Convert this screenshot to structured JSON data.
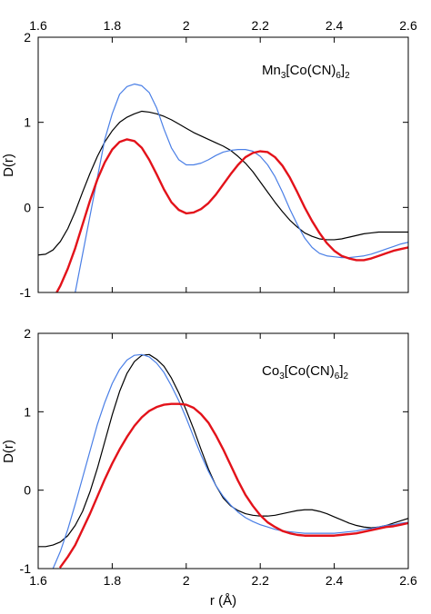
{
  "chart_data": [
    {
      "type": "line",
      "annotation": {
        "parts": [
          [
            "Mn",
            "n"
          ],
          [
            "3",
            "sub"
          ],
          [
            "[Co(CN)",
            "n"
          ],
          [
            "6",
            "sub"
          ],
          [
            "]",
            "n"
          ],
          [
            "2",
            "sub"
          ]
        ]
      },
      "xlabel": "",
      "ylabel": "D(r)",
      "xlim": [
        1.6,
        2.6
      ],
      "ylim": [
        -1,
        2
      ],
      "xticks": [
        1.6,
        1.8,
        2,
        2.2,
        2.4,
        2.6
      ],
      "xtick_labels": [
        "1.6",
        "1.8",
        "2",
        "2.2",
        "2.4",
        "2.6"
      ],
      "yticks": [
        -1,
        0,
        1,
        2
      ],
      "ytick_labels": [
        "-1",
        "0",
        "1",
        "2"
      ],
      "top_tick_labels": true,
      "bottom_tick_labels": false,
      "series": [
        {
          "color": "#000000",
          "width": 1.2,
          "x": [
            1.6,
            1.62,
            1.64,
            1.66,
            1.68,
            1.7,
            1.72,
            1.74,
            1.76,
            1.78,
            1.8,
            1.82,
            1.84,
            1.86,
            1.88,
            1.9,
            1.92,
            1.94,
            1.96,
            1.98,
            2.0,
            2.02,
            2.04,
            2.06,
            2.08,
            2.1,
            2.12,
            2.14,
            2.16,
            2.18,
            2.2,
            2.22,
            2.24,
            2.26,
            2.28,
            2.3,
            2.32,
            2.34,
            2.36,
            2.38,
            2.4,
            2.42,
            2.44,
            2.46,
            2.48,
            2.5,
            2.52,
            2.54,
            2.56,
            2.58,
            2.6
          ],
          "y": [
            -0.56,
            -0.55,
            -0.5,
            -0.4,
            -0.25,
            -0.05,
            0.18,
            0.4,
            0.6,
            0.77,
            0.9,
            1.0,
            1.06,
            1.1,
            1.13,
            1.12,
            1.1,
            1.07,
            1.03,
            0.98,
            0.93,
            0.88,
            0.84,
            0.8,
            0.76,
            0.72,
            0.67,
            0.6,
            0.52,
            0.42,
            0.3,
            0.18,
            0.06,
            -0.05,
            -0.15,
            -0.23,
            -0.3,
            -0.34,
            -0.37,
            -0.38,
            -0.38,
            -0.37,
            -0.35,
            -0.33,
            -0.31,
            -0.3,
            -0.29,
            -0.29,
            -0.29,
            -0.29,
            -0.29
          ]
        },
        {
          "color": "#4a7fe6",
          "width": 1.2,
          "x": [
            1.7,
            1.72,
            1.74,
            1.76,
            1.78,
            1.8,
            1.82,
            1.84,
            1.86,
            1.88,
            1.9,
            1.92,
            1.94,
            1.96,
            1.98,
            2.0,
            2.02,
            2.04,
            2.06,
            2.08,
            2.1,
            2.12,
            2.14,
            2.16,
            2.18,
            2.2,
            2.22,
            2.24,
            2.26,
            2.28,
            2.3,
            2.32,
            2.34,
            2.36,
            2.38,
            2.4,
            2.42,
            2.44,
            2.46,
            2.48,
            2.5,
            2.52,
            2.54,
            2.56,
            2.58,
            2.6
          ],
          "y": [
            -1.0,
            -0.55,
            -0.1,
            0.35,
            0.8,
            1.1,
            1.33,
            1.42,
            1.45,
            1.43,
            1.35,
            1.17,
            0.92,
            0.7,
            0.56,
            0.5,
            0.5,
            0.52,
            0.56,
            0.61,
            0.65,
            0.67,
            0.68,
            0.68,
            0.66,
            0.6,
            0.5,
            0.36,
            0.18,
            -0.02,
            -0.2,
            -0.36,
            -0.47,
            -0.54,
            -0.57,
            -0.58,
            -0.59,
            -0.59,
            -0.58,
            -0.57,
            -0.55,
            -0.52,
            -0.49,
            -0.46,
            -0.43,
            -0.41
          ]
        },
        {
          "color": "#e3121a",
          "width": 2.4,
          "x": [
            1.65,
            1.66,
            1.68,
            1.7,
            1.72,
            1.74,
            1.76,
            1.78,
            1.8,
            1.82,
            1.84,
            1.86,
            1.88,
            1.9,
            1.92,
            1.94,
            1.96,
            1.98,
            2.0,
            2.02,
            2.04,
            2.06,
            2.08,
            2.1,
            2.12,
            2.14,
            2.16,
            2.18,
            2.2,
            2.22,
            2.24,
            2.26,
            2.28,
            2.3,
            2.32,
            2.34,
            2.36,
            2.38,
            2.4,
            2.42,
            2.44,
            2.46,
            2.48,
            2.5,
            2.52,
            2.54,
            2.56,
            2.58,
            2.6
          ],
          "y": [
            -1.0,
            -0.92,
            -0.72,
            -0.48,
            -0.2,
            0.08,
            0.33,
            0.53,
            0.68,
            0.77,
            0.8,
            0.78,
            0.7,
            0.56,
            0.39,
            0.21,
            0.06,
            -0.03,
            -0.07,
            -0.06,
            -0.02,
            0.05,
            0.15,
            0.27,
            0.39,
            0.5,
            0.59,
            0.64,
            0.66,
            0.65,
            0.59,
            0.49,
            0.35,
            0.18,
            0.0,
            -0.16,
            -0.3,
            -0.42,
            -0.51,
            -0.57,
            -0.6,
            -0.62,
            -0.62,
            -0.6,
            -0.57,
            -0.54,
            -0.51,
            -0.49,
            -0.47
          ]
        }
      ]
    },
    {
      "type": "line",
      "annotation": {
        "parts": [
          [
            "Co",
            "n"
          ],
          [
            "3",
            "sub"
          ],
          [
            "[Co(CN)",
            "n"
          ],
          [
            "6",
            "sub"
          ],
          [
            "]",
            "n"
          ],
          [
            "2",
            "sub"
          ]
        ]
      },
      "xlabel": "r (Å)",
      "ylabel": "D(r)",
      "xlim": [
        1.6,
        2.6
      ],
      "ylim": [
        -1,
        2
      ],
      "xticks": [
        1.6,
        1.8,
        2,
        2.2,
        2.4,
        2.6
      ],
      "xtick_labels": [
        "1.6",
        "1.8",
        "2",
        "2.2",
        "2.4",
        "2.6"
      ],
      "yticks": [
        -1,
        0,
        1,
        2
      ],
      "ytick_labels": [
        "-1",
        "0",
        "1",
        "2"
      ],
      "top_tick_labels": false,
      "bottom_tick_labels": true,
      "series": [
        {
          "color": "#000000",
          "width": 1.2,
          "x": [
            1.6,
            1.62,
            1.64,
            1.66,
            1.68,
            1.7,
            1.72,
            1.74,
            1.76,
            1.78,
            1.8,
            1.82,
            1.84,
            1.86,
            1.88,
            1.9,
            1.92,
            1.94,
            1.96,
            1.98,
            2.0,
            2.02,
            2.04,
            2.06,
            2.08,
            2.1,
            2.12,
            2.14,
            2.16,
            2.18,
            2.2,
            2.22,
            2.24,
            2.26,
            2.28,
            2.3,
            2.32,
            2.34,
            2.36,
            2.38,
            2.4,
            2.42,
            2.44,
            2.46,
            2.48,
            2.5,
            2.52,
            2.54,
            2.56,
            2.58,
            2.6
          ],
          "y": [
            -0.72,
            -0.72,
            -0.7,
            -0.66,
            -0.58,
            -0.45,
            -0.27,
            -0.02,
            0.28,
            0.62,
            0.96,
            1.26,
            1.49,
            1.64,
            1.72,
            1.73,
            1.67,
            1.58,
            1.43,
            1.24,
            1.02,
            0.78,
            0.52,
            0.27,
            0.06,
            -0.1,
            -0.2,
            -0.26,
            -0.3,
            -0.32,
            -0.33,
            -0.33,
            -0.32,
            -0.3,
            -0.28,
            -0.26,
            -0.25,
            -0.25,
            -0.27,
            -0.3,
            -0.34,
            -0.38,
            -0.42,
            -0.45,
            -0.47,
            -0.48,
            -0.47,
            -0.45,
            -0.42,
            -0.39,
            -0.36
          ]
        },
        {
          "color": "#4a7fe6",
          "width": 1.2,
          "x": [
            1.64,
            1.66,
            1.68,
            1.7,
            1.72,
            1.74,
            1.76,
            1.78,
            1.8,
            1.82,
            1.84,
            1.86,
            1.88,
            1.9,
            1.92,
            1.94,
            1.96,
            1.98,
            2.0,
            2.02,
            2.04,
            2.06,
            2.08,
            2.1,
            2.12,
            2.14,
            2.16,
            2.18,
            2.2,
            2.22,
            2.24,
            2.26,
            2.28,
            2.3,
            2.32,
            2.34,
            2.36,
            2.38,
            2.4,
            2.42,
            2.44,
            2.46,
            2.48,
            2.5,
            2.52,
            2.54,
            2.56,
            2.58,
            2.6
          ],
          "y": [
            -1.0,
            -0.78,
            -0.5,
            -0.18,
            0.16,
            0.5,
            0.84,
            1.12,
            1.36,
            1.54,
            1.66,
            1.72,
            1.73,
            1.7,
            1.62,
            1.5,
            1.33,
            1.14,
            0.92,
            0.68,
            0.45,
            0.24,
            0.06,
            -0.08,
            -0.19,
            -0.28,
            -0.35,
            -0.4,
            -0.44,
            -0.47,
            -0.5,
            -0.52,
            -0.53,
            -0.54,
            -0.55,
            -0.55,
            -0.55,
            -0.55,
            -0.55,
            -0.54,
            -0.53,
            -0.52,
            -0.5,
            -0.49,
            -0.47,
            -0.45,
            -0.44,
            -0.42,
            -0.41
          ]
        },
        {
          "color": "#e3121a",
          "width": 2.4,
          "x": [
            1.66,
            1.68,
            1.7,
            1.72,
            1.74,
            1.76,
            1.78,
            1.8,
            1.82,
            1.84,
            1.86,
            1.88,
            1.9,
            1.92,
            1.94,
            1.96,
            1.98,
            2.0,
            2.02,
            2.04,
            2.06,
            2.08,
            2.1,
            2.12,
            2.14,
            2.16,
            2.18,
            2.2,
            2.22,
            2.24,
            2.26,
            2.28,
            2.3,
            2.32,
            2.34,
            2.36,
            2.38,
            2.4,
            2.42,
            2.44,
            2.46,
            2.48,
            2.5,
            2.52,
            2.54,
            2.56,
            2.58,
            2.6
          ],
          "y": [
            -0.98,
            -0.85,
            -0.7,
            -0.5,
            -0.3,
            -0.08,
            0.14,
            0.34,
            0.52,
            0.68,
            0.82,
            0.93,
            1.01,
            1.06,
            1.09,
            1.1,
            1.1,
            1.09,
            1.05,
            0.97,
            0.86,
            0.7,
            0.52,
            0.32,
            0.12,
            -0.06,
            -0.2,
            -0.32,
            -0.41,
            -0.47,
            -0.52,
            -0.55,
            -0.57,
            -0.58,
            -0.58,
            -0.58,
            -0.58,
            -0.58,
            -0.57,
            -0.56,
            -0.55,
            -0.53,
            -0.51,
            -0.49,
            -0.47,
            -0.46,
            -0.44,
            -0.42
          ]
        }
      ]
    }
  ]
}
